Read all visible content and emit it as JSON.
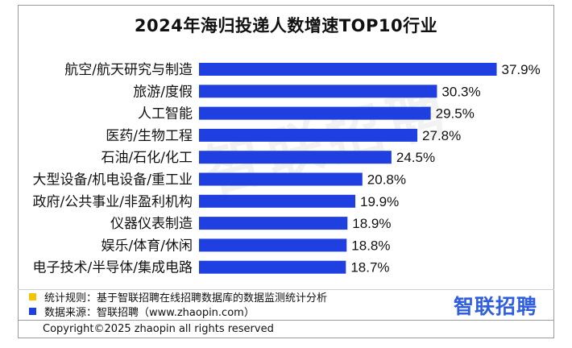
{
  "chart_data": {
    "type": "bar",
    "orientation": "horizontal",
    "title": "2024年海归投递人数增速TOP10行业",
    "categories": [
      "航空/航天研究与制造",
      "旅游/度假",
      "人工智能",
      "医药/生物工程",
      "石油/石化/化工",
      "大型设备/机电设备/重工业",
      "政府/公共事业/非盈利机构",
      "仪器仪表制造",
      "娱乐/体育/休闲",
      "电子技术/半导体/集成电路"
    ],
    "values": [
      37.9,
      30.3,
      29.5,
      27.8,
      24.5,
      20.8,
      19.9,
      18.9,
      18.8,
      18.7
    ],
    "value_labels": [
      "37.9%",
      "30.3%",
      "29.5%",
      "27.8%",
      "24.5%",
      "20.8%",
      "19.9%",
      "18.9%",
      "18.8%",
      "18.7%"
    ],
    "xlim": [
      0,
      40
    ],
    "bar_color": "#1f3fe0",
    "grid": false
  },
  "notes": {
    "rule": "统计规则：基于智联招聘在线招聘数据库的数据监测统计分析",
    "rule_color": "#f5c400",
    "source": "数据来源：智联招聘（www.zhaopin.com）",
    "source_color": "#1f3fe0"
  },
  "logo": "智联招聘",
  "watermark": "智联招聘",
  "copyright": "Copyright©2025 zhaopin all rights reserved"
}
